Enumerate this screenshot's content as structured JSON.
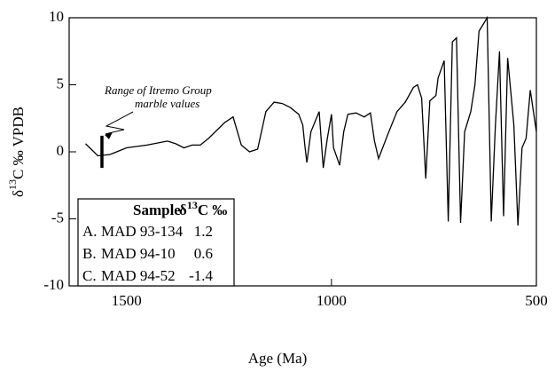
{
  "chart_data": {
    "type": "line",
    "x_label": "Age (Ma)",
    "y_label": {
      "prefix": "δ",
      "sup": "13",
      "suffix": "C ‰ VPDB"
    },
    "color": "#000000",
    "xlim": [
      1640,
      500
    ],
    "ylim": [
      -10,
      10
    ],
    "xticks": [
      1500,
      1000,
      500
    ],
    "yticks": [
      -10,
      -5,
      0,
      5,
      10
    ],
    "x": [
      1600,
      1570,
      1540,
      1500,
      1450,
      1400,
      1380,
      1360,
      1340,
      1320,
      1300,
      1260,
      1240,
      1220,
      1200,
      1180,
      1160,
      1140,
      1120,
      1100,
      1080,
      1070,
      1065,
      1060,
      1050,
      1030,
      1020,
      1010,
      1000,
      995,
      980,
      970,
      960,
      940,
      920,
      905,
      895,
      885,
      875,
      860,
      840,
      820,
      800,
      790,
      780,
      770,
      760,
      745,
      740,
      725,
      715,
      705,
      695,
      685,
      675,
      660,
      650,
      640,
      620,
      610,
      600,
      590,
      580,
      570,
      555,
      545,
      535,
      525,
      515,
      500
    ],
    "values": [
      0.6,
      -0.3,
      -0.2,
      0.3,
      0.5,
      0.8,
      0.6,
      0.3,
      0.5,
      0.5,
      1.0,
      2.2,
      2.6,
      0.5,
      0.0,
      0.2,
      3.0,
      3.7,
      3.6,
      3.3,
      2.8,
      2.0,
      0.5,
      -0.8,
      1.5,
      3.0,
      -1.2,
      1.0,
      2.8,
      0.3,
      -1.0,
      1.5,
      2.8,
      2.9,
      2.6,
      2.9,
      0.8,
      -0.5,
      0.3,
      1.5,
      3.0,
      3.7,
      4.8,
      5.0,
      4.0,
      -2.0,
      3.8,
      4.2,
      5.5,
      6.8,
      -5.2,
      8.2,
      8.5,
      -5.3,
      1.5,
      3.0,
      5.0,
      9.0,
      10.0,
      -5.2,
      2.0,
      7.5,
      -4.8,
      7.0,
      2.0,
      -5.5,
      0.3,
      1.0,
      4.6,
      1.5
    ],
    "range_marker": {
      "x": 1560,
      "low": -1.2,
      "high": 1.2
    },
    "annotation": [
      "Range of Itremo Group",
      "marble values"
    ],
    "table": {
      "header": [
        "Sample",
        {
          "prefix": "δ",
          "sup": "13",
          "suffix": "C ‰"
        }
      ],
      "rows": [
        [
          "A.",
          "MAD 93-134",
          1.2
        ],
        [
          "B.",
          "MAD 94-10",
          0.6
        ],
        [
          "C.",
          "MAD 94-52",
          -1.4
        ]
      ]
    }
  }
}
